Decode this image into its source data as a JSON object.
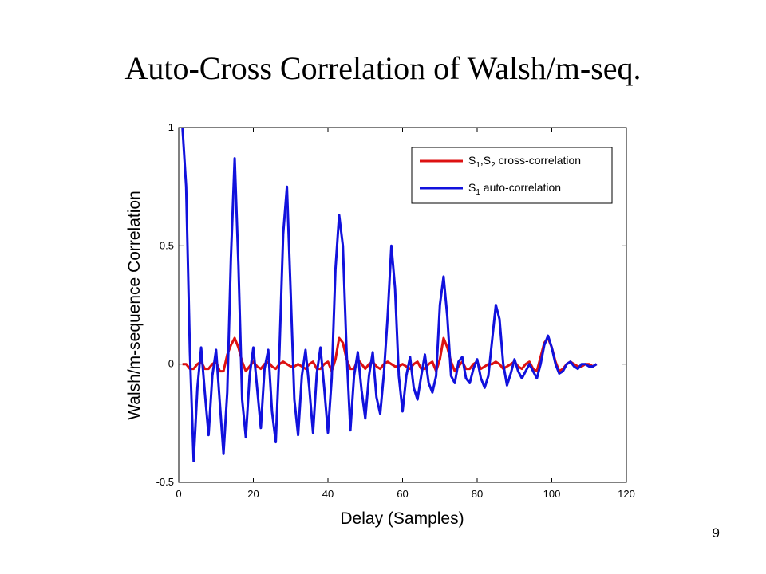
{
  "slide": {
    "title": "Auto-Cross Correlation of Walsh/m-seq.",
    "page_number": "9"
  },
  "chart_data": {
    "type": "line",
    "xlabel": "Delay (Samples)",
    "ylabel": "Walsh/m-sequence Correlation",
    "xlim": [
      0,
      120
    ],
    "ylim": [
      -0.5,
      1
    ],
    "xticks": [
      0,
      20,
      40,
      60,
      80,
      100,
      120
    ],
    "yticks": [
      -0.5,
      0,
      0.5,
      1
    ],
    "yticklabels": [
      "-0.5",
      "0",
      "0.5",
      "1"
    ],
    "grid": false,
    "legend_position": "top-right",
    "legend": [
      {
        "pre": "S",
        "sub1": "1",
        "mid": ",S",
        "sub2": "2",
        "post": " cross-correlation",
        "color": "#dd1111"
      },
      {
        "pre": "S",
        "sub1": "1",
        "mid": "",
        "sub2": "",
        "post": " auto-correlation",
        "color": "#1111dd"
      }
    ],
    "series": [
      {
        "color": "#dd1111",
        "points": [
          [
            1,
            0
          ],
          [
            2,
            0
          ],
          [
            3,
            -0.02
          ],
          [
            4,
            -0.02
          ],
          [
            5,
            0
          ],
          [
            6,
            0.01
          ],
          [
            7,
            -0.02
          ],
          [
            8,
            -0.02
          ],
          [
            9,
            0
          ],
          [
            10,
            0.01
          ],
          [
            11,
            -0.03
          ],
          [
            12,
            -0.03
          ],
          [
            13,
            0.04
          ],
          [
            14,
            0.08
          ],
          [
            15,
            0.11
          ],
          [
            16,
            0.07
          ],
          [
            17,
            0.01
          ],
          [
            18,
            -0.03
          ],
          [
            19,
            -0.01
          ],
          [
            20,
            0.01
          ],
          [
            21,
            -0.01
          ],
          [
            22,
            -0.02
          ],
          [
            23,
            0
          ],
          [
            24,
            0.01
          ],
          [
            25,
            -0.01
          ],
          [
            26,
            -0.02
          ],
          [
            27,
            0
          ],
          [
            28,
            0.01
          ],
          [
            29,
            0
          ],
          [
            30,
            -0.01
          ],
          [
            31,
            -0.01
          ],
          [
            32,
            0
          ],
          [
            33,
            -0.01
          ],
          [
            34,
            -0.02
          ],
          [
            35,
            0
          ],
          [
            36,
            0.01
          ],
          [
            37,
            -0.02
          ],
          [
            38,
            -0.02
          ],
          [
            39,
            0
          ],
          [
            40,
            0.01
          ],
          [
            41,
            -0.03
          ],
          [
            42,
            0.02
          ],
          [
            43,
            0.11
          ],
          [
            44,
            0.09
          ],
          [
            45,
            0.02
          ],
          [
            46,
            -0.02
          ],
          [
            47,
            -0.02
          ],
          [
            48,
            0.02
          ],
          [
            49,
            0
          ],
          [
            50,
            -0.02
          ],
          [
            51,
            0
          ],
          [
            52,
            0.01
          ],
          [
            53,
            -0.01
          ],
          [
            54,
            -0.02
          ],
          [
            55,
            0
          ],
          [
            56,
            0.01
          ],
          [
            57,
            0
          ],
          [
            58,
            -0.01
          ],
          [
            59,
            -0.01
          ],
          [
            60,
            0
          ],
          [
            61,
            -0.01
          ],
          [
            62,
            -0.02
          ],
          [
            63,
            0
          ],
          [
            64,
            0.01
          ],
          [
            65,
            -0.02
          ],
          [
            66,
            -0.02
          ],
          [
            67,
            0
          ],
          [
            68,
            0.01
          ],
          [
            69,
            -0.03
          ],
          [
            70,
            0.02
          ],
          [
            71,
            0.11
          ],
          [
            72,
            0.07
          ],
          [
            73,
            0.01
          ],
          [
            74,
            -0.03
          ],
          [
            75,
            -0.01
          ],
          [
            76,
            0.01
          ],
          [
            77,
            -0.02
          ],
          [
            78,
            -0.02
          ],
          [
            79,
            0
          ],
          [
            80,
            0.01
          ],
          [
            81,
            -0.02
          ],
          [
            82,
            -0.01
          ],
          [
            83,
            0
          ],
          [
            84,
            0
          ],
          [
            85,
            0.01
          ],
          [
            86,
            0
          ],
          [
            87,
            -0.02
          ],
          [
            88,
            -0.01
          ],
          [
            89,
            0
          ],
          [
            90,
            0.01
          ],
          [
            91,
            -0.01
          ],
          [
            92,
            -0.02
          ],
          [
            93,
            0
          ],
          [
            94,
            0.01
          ],
          [
            95,
            -0.02
          ],
          [
            96,
            -0.03
          ],
          [
            97,
            0.03
          ],
          [
            98,
            0.09
          ],
          [
            99,
            0.11
          ],
          [
            100,
            0.07
          ],
          [
            101,
            0.01
          ],
          [
            102,
            -0.03
          ],
          [
            103,
            -0.02
          ],
          [
            104,
            0
          ],
          [
            105,
            0.01
          ],
          [
            106,
            0
          ],
          [
            107,
            -0.01
          ],
          [
            108,
            -0.01
          ],
          [
            109,
            0
          ],
          [
            110,
            0
          ],
          [
            111,
            -0.01
          ],
          [
            112,
            0
          ]
        ]
      },
      {
        "color": "#1111dd",
        "points": [
          [
            1,
            1
          ],
          [
            2,
            0.75
          ],
          [
            3,
            0.05
          ],
          [
            4,
            -0.41
          ],
          [
            5,
            -0.1
          ],
          [
            6,
            0.07
          ],
          [
            7,
            -0.12
          ],
          [
            8,
            -0.3
          ],
          [
            9,
            -0.05
          ],
          [
            10,
            0.06
          ],
          [
            11,
            -0.16
          ],
          [
            12,
            -0.38
          ],
          [
            13,
            -0.12
          ],
          [
            14,
            0.45
          ],
          [
            15,
            0.87
          ],
          [
            16,
            0.42
          ],
          [
            17,
            -0.15
          ],
          [
            18,
            -0.31
          ],
          [
            19,
            -0.05
          ],
          [
            20,
            0.07
          ],
          [
            21,
            -0.1
          ],
          [
            22,
            -0.27
          ],
          [
            23,
            -0.02
          ],
          [
            24,
            0.06
          ],
          [
            25,
            -0.2
          ],
          [
            26,
            -0.33
          ],
          [
            27,
            0.05
          ],
          [
            28,
            0.55
          ],
          [
            29,
            0.75
          ],
          [
            30,
            0.3
          ],
          [
            31,
            -0.15
          ],
          [
            32,
            -0.3
          ],
          [
            33,
            -0.05
          ],
          [
            34,
            0.06
          ],
          [
            35,
            -0.1
          ],
          [
            36,
            -0.29
          ],
          [
            37,
            -0.04
          ],
          [
            38,
            0.07
          ],
          [
            39,
            -0.1
          ],
          [
            40,
            -0.29
          ],
          [
            41,
            -0.06
          ],
          [
            42,
            0.4
          ],
          [
            43,
            0.63
          ],
          [
            44,
            0.5
          ],
          [
            45,
            0.05
          ],
          [
            46,
            -0.28
          ],
          [
            47,
            -0.05
          ],
          [
            48,
            0.05
          ],
          [
            49,
            -0.11
          ],
          [
            50,
            -0.23
          ],
          [
            51,
            -0.05
          ],
          [
            52,
            0.05
          ],
          [
            53,
            -0.14
          ],
          [
            54,
            -0.21
          ],
          [
            55,
            -0.04
          ],
          [
            56,
            0.2
          ],
          [
            57,
            0.5
          ],
          [
            58,
            0.32
          ],
          [
            59,
            -0.05
          ],
          [
            60,
            -0.2
          ],
          [
            61,
            -0.05
          ],
          [
            62,
            0.03
          ],
          [
            63,
            -0.1
          ],
          [
            64,
            -0.15
          ],
          [
            65,
            -0.05
          ],
          [
            66,
            0.04
          ],
          [
            67,
            -0.08
          ],
          [
            68,
            -0.12
          ],
          [
            69,
            -0.05
          ],
          [
            70,
            0.25
          ],
          [
            71,
            0.37
          ],
          [
            72,
            0.2
          ],
          [
            73,
            -0.05
          ],
          [
            74,
            -0.08
          ],
          [
            75,
            0.01
          ],
          [
            76,
            0.03
          ],
          [
            77,
            -0.06
          ],
          [
            78,
            -0.08
          ],
          [
            79,
            -0.02
          ],
          [
            80,
            0.02
          ],
          [
            81,
            -0.06
          ],
          [
            82,
            -0.1
          ],
          [
            83,
            -0.05
          ],
          [
            84,
            0.1
          ],
          [
            85,
            0.25
          ],
          [
            86,
            0.19
          ],
          [
            87,
            0
          ],
          [
            88,
            -0.09
          ],
          [
            89,
            -0.04
          ],
          [
            90,
            0.02
          ],
          [
            91,
            -0.03
          ],
          [
            92,
            -0.06
          ],
          [
            93,
            -0.03
          ],
          [
            94,
            0
          ],
          [
            95,
            -0.03
          ],
          [
            96,
            -0.06
          ],
          [
            97,
            0
          ],
          [
            98,
            0.08
          ],
          [
            99,
            0.12
          ],
          [
            100,
            0.07
          ],
          [
            101,
            0
          ],
          [
            102,
            -0.04
          ],
          [
            103,
            -0.03
          ],
          [
            104,
            0
          ],
          [
            105,
            0.01
          ],
          [
            106,
            -0.01
          ],
          [
            107,
            -0.02
          ],
          [
            108,
            0
          ],
          [
            109,
            0
          ],
          [
            110,
            -0.01
          ],
          [
            111,
            -0.01
          ],
          [
            112,
            0
          ]
        ]
      }
    ]
  }
}
